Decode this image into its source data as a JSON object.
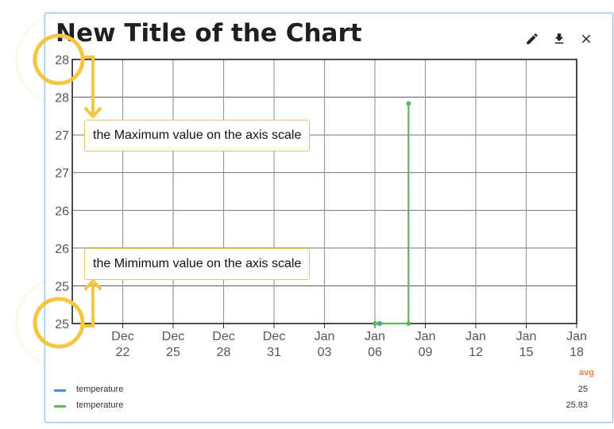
{
  "colors": {
    "series1": "#3b8ede",
    "series2": "#5cb85c",
    "accent": "#f3c744",
    "avg": "#e8834a"
  },
  "chart": {
    "title": "New Title of the Chart",
    "toolbar": [
      {
        "name": "edit-icon",
        "glyph": "✎"
      },
      {
        "name": "download-icon",
        "glyph": "⤓"
      },
      {
        "name": "close-icon",
        "glyph": "✕"
      }
    ]
  },
  "annotations": {
    "max": "the Maximum value on the axis scale",
    "min": "the Mimimum value on the axis scale"
  },
  "legend": {
    "header": "avg",
    "items": [
      {
        "name": "temperature",
        "avg": "25",
        "color": "#3b8ede"
      },
      {
        "name": "temperature",
        "avg": "25.83",
        "color": "#5cb85c"
      }
    ]
  },
  "chart_data": {
    "type": "line",
    "title": "New Title of the Chart",
    "xlabel": "",
    "ylabel": "",
    "ylim": [
      25,
      28
    ],
    "y_tick_labels": [
      "28",
      "28",
      "27",
      "27",
      "26",
      "26",
      "25",
      "25"
    ],
    "x_ticks": [
      {
        "date": "2023-12-22",
        "label": [
          "Dec",
          "22"
        ]
      },
      {
        "date": "2023-12-25",
        "label": [
          "Dec",
          "25"
        ]
      },
      {
        "date": "2023-12-28",
        "label": [
          "Dec",
          "28"
        ]
      },
      {
        "date": "2023-12-31",
        "label": [
          "Dec",
          "31"
        ]
      },
      {
        "date": "2024-01-03",
        "label": [
          "Jan",
          "03"
        ]
      },
      {
        "date": "2024-01-06",
        "label": [
          "Jan",
          "06"
        ]
      },
      {
        "date": "2024-01-09",
        "label": [
          "Jan",
          "09"
        ]
      },
      {
        "date": "2024-01-12",
        "label": [
          "Jan",
          "12"
        ]
      },
      {
        "date": "2024-01-15",
        "label": [
          "Jan",
          "15"
        ]
      },
      {
        "date": "2024-01-18",
        "label": [
          "Jan",
          "18"
        ]
      }
    ],
    "xlim": [
      "2023-12-19",
      "2024-01-18"
    ],
    "grid": true,
    "legend": "bottom",
    "series": [
      {
        "name": "temperature",
        "color": "#3b8ede",
        "points": [
          {
            "x": "2024-01-06",
            "y": 25.0
          },
          {
            "x": "2024-01-06",
            "y": 25.0
          }
        ]
      },
      {
        "name": "temperature",
        "color": "#5cb85c",
        "points": [
          {
            "x": "2024-01-06",
            "y": 25.0
          },
          {
            "x": "2024-01-08",
            "y": 25.0
          },
          {
            "x": "2024-01-08",
            "y": 27.5
          }
        ]
      }
    ]
  }
}
